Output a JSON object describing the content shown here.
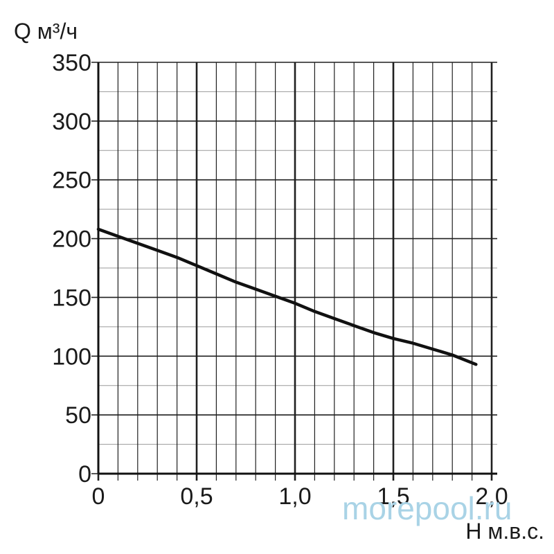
{
  "chart_data": {
    "type": "line",
    "title": "",
    "ylabel": "Q м³/ч",
    "xlabel": "H м.в.с.",
    "xlim": [
      0,
      2.0
    ],
    "ylim": [
      0,
      350
    ],
    "grid": true,
    "x_ticks": [
      "0",
      "0,5",
      "1,0",
      "1,5",
      "2,0"
    ],
    "x_tick_values": [
      0,
      0.5,
      1.0,
      1.5,
      2.0
    ],
    "y_ticks": [
      "0",
      "50",
      "100",
      "150",
      "200",
      "250",
      "300",
      "350"
    ],
    "y_tick_values": [
      0,
      50,
      100,
      150,
      200,
      250,
      300,
      350
    ],
    "series": [
      {
        "color": "#111111",
        "x": [
          0,
          0.1,
          0.2,
          0.3,
          0.4,
          0.5,
          0.6,
          0.7,
          0.8,
          0.9,
          1.0,
          1.1,
          1.2,
          1.3,
          1.4,
          1.5,
          1.6,
          1.7,
          1.8,
          1.92
        ],
        "y": [
          208,
          202,
          196,
          190,
          184,
          177,
          170,
          163,
          157,
          151,
          145,
          138,
          132,
          126,
          120,
          115,
          111,
          106,
          101,
          93
        ]
      }
    ]
  },
  "watermark": "morepool.ru"
}
